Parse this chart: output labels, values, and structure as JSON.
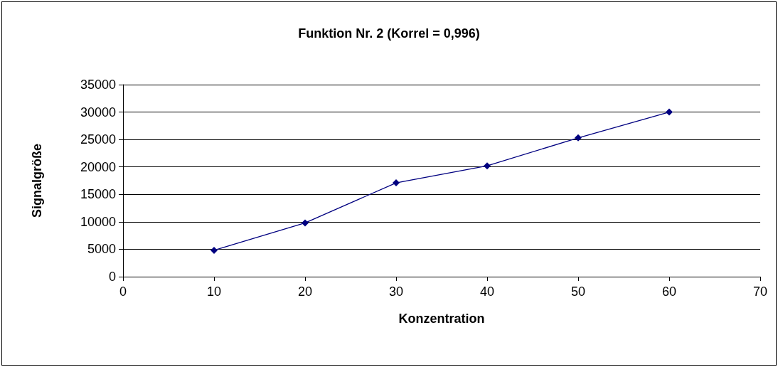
{
  "chart_data": {
    "type": "line",
    "title": "Funktion Nr. 2 (Korrel = 0,996)",
    "xlabel": "Konzentration",
    "ylabel": "Signalgröße",
    "x": [
      10,
      20,
      30,
      40,
      50,
      60
    ],
    "series": [
      {
        "color": "#000080",
        "values": [
          4800,
          9800,
          17100,
          20200,
          25300,
          30000
        ]
      }
    ],
    "xlim": [
      0,
      70
    ],
    "xticks": [
      0,
      10,
      20,
      30,
      40,
      50,
      60,
      70
    ],
    "ylim": [
      0,
      35000
    ],
    "yticks": [
      0,
      5000,
      10000,
      15000,
      20000,
      25000,
      30000,
      35000
    ],
    "grid": "y",
    "marker": "diamond",
    "line_style": "solid"
  }
}
